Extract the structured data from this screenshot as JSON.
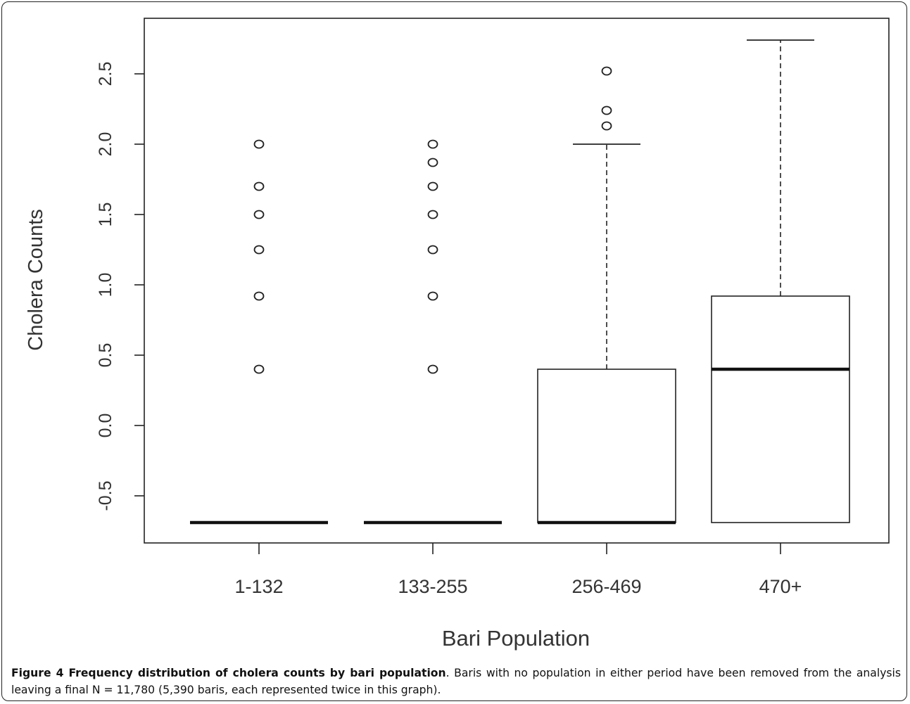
{
  "chart_data": {
    "type": "boxplot",
    "xlabel": "Bari Population",
    "ylabel": "Cholera Counts",
    "categories": [
      "1-132",
      "133-255",
      "256-469",
      "470+"
    ],
    "ylim": [
      -0.85,
      2.85
    ],
    "yticks": [
      -0.5,
      0.0,
      0.5,
      1.0,
      1.5,
      2.0,
      2.5
    ],
    "ytick_labels": [
      "-0.5",
      "0.0",
      "0.5",
      "1.0",
      "1.5",
      "2.0",
      "2.5"
    ],
    "boxes": [
      {
        "category": "1-132",
        "q1": -0.69,
        "median": -0.69,
        "q3": -0.69,
        "whisker_low": -0.69,
        "whisker_high": -0.69,
        "outliers": [
          0.4,
          0.92,
          1.25,
          1.5,
          1.7,
          2.0
        ]
      },
      {
        "category": "133-255",
        "q1": -0.69,
        "median": -0.69,
        "q3": -0.69,
        "whisker_low": -0.69,
        "whisker_high": -0.69,
        "outliers": [
          0.4,
          0.92,
          1.25,
          1.5,
          1.7,
          1.87,
          2.0
        ]
      },
      {
        "category": "256-469",
        "q1": -0.69,
        "median": -0.69,
        "q3": 0.4,
        "whisker_low": -0.69,
        "whisker_high": 2.0,
        "outliers": [
          2.13,
          2.24,
          2.52
        ]
      },
      {
        "category": "470+",
        "q1": -0.69,
        "median": 0.4,
        "q3": 0.92,
        "whisker_low": -0.69,
        "whisker_high": 2.74,
        "outliers": []
      }
    ],
    "grid": false
  },
  "caption": {
    "label": "Figure 4 Frequency distribution of cholera counts by bari population",
    "text": ". Baris with no population in either period have been removed from the analysis leaving a final N = 11,780 (5,390 baris, each represented twice in this graph)."
  }
}
